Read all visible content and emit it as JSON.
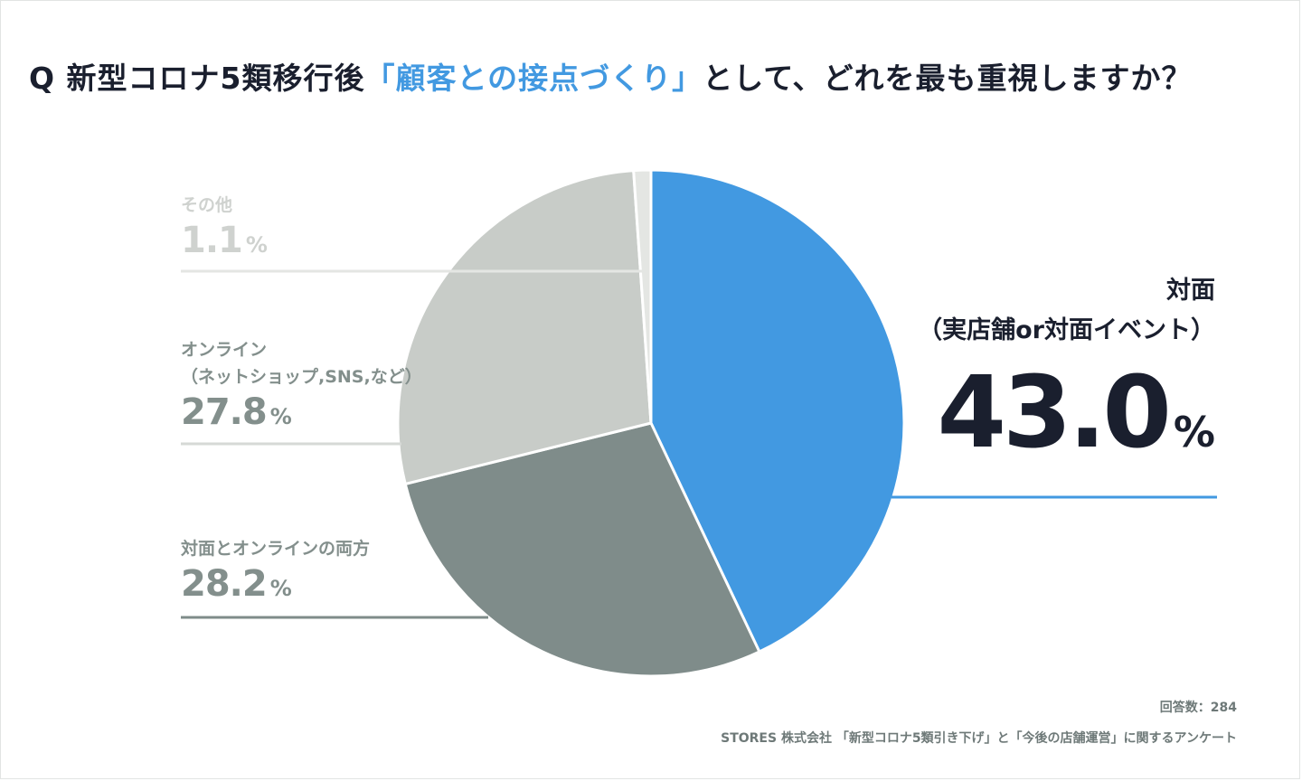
{
  "title": {
    "prefix": "Q 新型コロナ5類移行後",
    "highlight": "「顧客との接点づくり」",
    "suffix": "として、どれを最も重視しますか？"
  },
  "chart_data": {
    "type": "pie",
    "slices": [
      {
        "key": "face",
        "label": "対面（実店舗or対面イベント）",
        "value": 43.0,
        "color": "#4299e1"
      },
      {
        "key": "both",
        "label": "対面とオンラインの両方",
        "value": 28.2,
        "color": "#7f8c8a"
      },
      {
        "key": "online",
        "label": "オンライン（ネットショップ,SNS,など）",
        "value": 27.8,
        "color": "#c8ccc8"
      },
      {
        "key": "other",
        "label": "その他",
        "value": 1.1,
        "color": "#e4e6e3"
      }
    ]
  },
  "labels": {
    "face": {
      "line1": "対面",
      "line2": "（実店舗or対面イベント）",
      "value": "43.0",
      "unit": "%"
    },
    "both": {
      "line1": "対面とオンラインの両方",
      "value": "28.2",
      "unit": "%"
    },
    "online": {
      "line1": "オンライン",
      "line2": "（ネットショップ,SNS,など）",
      "value": "27.8",
      "unit": "%"
    },
    "other": {
      "line1": "その他",
      "value": "1.1",
      "unit": "%"
    }
  },
  "footer": {
    "responses": "回答数：284",
    "source": "STORES 株式会社 「新型コロナ5類引き下げ」と「今後の店舗運営」に関するアンケート"
  }
}
